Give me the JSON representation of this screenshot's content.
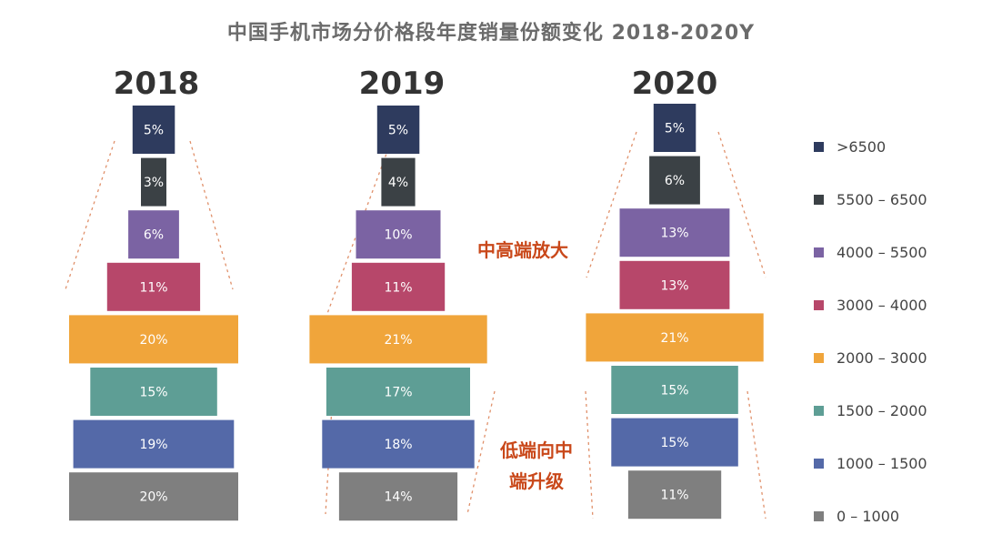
{
  "title": "中国手机市场分价格段年度销量份额变化  2018-2020Y",
  "annotations": {
    "upper": "中高端放大",
    "lower_line1": "低端向中",
    "lower_line2": "端升级"
  },
  "colors": {
    "annotation": "#c9481a",
    "dashed_guides": "#e0906a",
    "segments": [
      "#2e3b5e",
      "#3b4145",
      "#7b63a3",
      "#b7476a",
      "#f0a53b",
      "#5e9e95",
      "#5469a8",
      "#7f7f7f"
    ]
  },
  "chart_data": {
    "type": "bar",
    "orientation": "stacked-pyramid",
    "title": "中国手机市场分价格段年度销量份额变化  2018-2020Y",
    "categories": [
      "2018",
      "2019",
      "2020"
    ],
    "series": [
      {
        "name": ">6500",
        "values": [
          5,
          5,
          5
        ],
        "labels": [
          "5%",
          "5%",
          "5%"
        ]
      },
      {
        "name": "5500 – 6500",
        "values": [
          3,
          4,
          6
        ],
        "labels": [
          "3%",
          "4%",
          "6%"
        ]
      },
      {
        "name": "4000 – 5500",
        "values": [
          6,
          10,
          13
        ],
        "labels": [
          "6%",
          "10%",
          "13%"
        ]
      },
      {
        "name": "3000 – 4000",
        "values": [
          11,
          11,
          13
        ],
        "labels": [
          "11%",
          "11%",
          "13%"
        ]
      },
      {
        "name": "2000 – 3000",
        "values": [
          20,
          21,
          21
        ],
        "labels": [
          "20%",
          "21%",
          "21%"
        ]
      },
      {
        "name": "1500 – 2000",
        "values": [
          15,
          17,
          15
        ],
        "labels": [
          "15%",
          "17%",
          "15%"
        ]
      },
      {
        "name": "1000 – 1500",
        "values": [
          19,
          18,
          15
        ],
        "labels": [
          "19%",
          "18%",
          "15%"
        ]
      },
      {
        "name": "0 – 1000",
        "values": [
          20,
          14,
          11
        ],
        "labels": [
          "20%",
          "14%",
          "11%"
        ]
      }
    ],
    "legend_position": "right",
    "grid": false
  }
}
